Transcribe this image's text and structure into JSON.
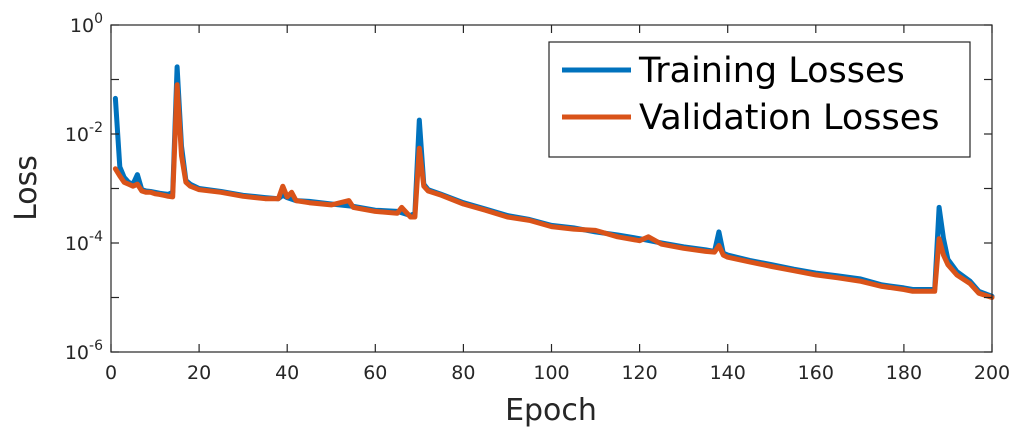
{
  "chart_data": {
    "type": "line",
    "xlabel": "Epoch",
    "ylabel": "Loss",
    "xlim": [
      0,
      200
    ],
    "ylim": [
      1e-06,
      1
    ],
    "y_scale": "log",
    "grid": false,
    "legend_position": "top-right",
    "x_ticks": [
      {
        "value": 0,
        "label": "0"
      },
      {
        "value": 20,
        "label": "20"
      },
      {
        "value": 40,
        "label": "40"
      },
      {
        "value": 60,
        "label": "60"
      },
      {
        "value": 80,
        "label": "80"
      },
      {
        "value": 100,
        "label": "100"
      },
      {
        "value": 120,
        "label": "120"
      },
      {
        "value": 140,
        "label": "140"
      },
      {
        "value": 160,
        "label": "160"
      },
      {
        "value": 180,
        "label": "180"
      },
      {
        "value": 200,
        "label": "200"
      }
    ],
    "y_ticks": [
      {
        "value": 1e-06,
        "base": "10",
        "exp": "-6"
      },
      {
        "value": 0.0001,
        "base": "10",
        "exp": "-4"
      },
      {
        "value": 0.01,
        "base": "10",
        "exp": "-2"
      },
      {
        "value": 1,
        "base": "10",
        "exp": "0"
      }
    ],
    "series": [
      {
        "name": "Training Losses",
        "color": "#0072BD",
        "points": [
          [
            1,
            0.045
          ],
          [
            2,
            0.0025
          ],
          [
            3,
            0.0016
          ],
          [
            4,
            0.0013
          ],
          [
            5,
            0.0012
          ],
          [
            6,
            0.0018
          ],
          [
            7,
            0.00095
          ],
          [
            8,
            0.0009
          ],
          [
            9,
            0.00088
          ],
          [
            10,
            0.00085
          ],
          [
            11,
            0.00082
          ],
          [
            12,
            0.0008
          ],
          [
            13,
            0.00078
          ],
          [
            14,
            0.00085
          ],
          [
            15,
            0.17
          ],
          [
            16,
            0.006
          ],
          [
            17,
            0.0014
          ],
          [
            18,
            0.0012
          ],
          [
            20,
            0.001
          ],
          [
            25,
            0.00088
          ],
          [
            30,
            0.00075
          ],
          [
            35,
            0.00068
          ],
          [
            38,
            0.00065
          ],
          [
            39,
            0.00075
          ],
          [
            40,
            0.00068
          ],
          [
            42,
            0.0006
          ],
          [
            45,
            0.00058
          ],
          [
            50,
            0.00052
          ],
          [
            54,
            0.00048
          ],
          [
            55,
            0.00047
          ],
          [
            60,
            0.0004
          ],
          [
            65,
            0.00038
          ],
          [
            68,
            0.00032
          ],
          [
            69,
            0.00035
          ],
          [
            70,
            0.018
          ],
          [
            71,
            0.0012
          ],
          [
            72,
            0.00095
          ],
          [
            75,
            0.00078
          ],
          [
            80,
            0.00055
          ],
          [
            85,
            0.00042
          ],
          [
            90,
            0.00032
          ],
          [
            95,
            0.00027
          ],
          [
            100,
            0.00021
          ],
          [
            105,
            0.00019
          ],
          [
            110,
            0.00016
          ],
          [
            115,
            0.00014
          ],
          [
            120,
            0.00012
          ],
          [
            125,
            0.0001
          ],
          [
            130,
            8.5e-05
          ],
          [
            135,
            7.5e-05
          ],
          [
            137,
            7e-05
          ],
          [
            138,
            0.00016
          ],
          [
            139,
            6.5e-05
          ],
          [
            140,
            6e-05
          ],
          [
            145,
            4.8e-05
          ],
          [
            150,
            4e-05
          ],
          [
            155,
            3.3e-05
          ],
          [
            160,
            2.8e-05
          ],
          [
            165,
            2.5e-05
          ],
          [
            170,
            2.2e-05
          ],
          [
            175,
            1.7e-05
          ],
          [
            180,
            1.5e-05
          ],
          [
            182,
            1.4e-05
          ],
          [
            185,
            1.4e-05
          ],
          [
            186,
            1.4e-05
          ],
          [
            187,
            1.4e-05
          ],
          [
            188,
            0.00045
          ],
          [
            189,
            0.00012
          ],
          [
            190,
            5e-05
          ],
          [
            192,
            3e-05
          ],
          [
            195,
            2e-05
          ],
          [
            197,
            1.3e-05
          ],
          [
            200,
            1.05e-05
          ]
        ]
      },
      {
        "name": "Validation Losses",
        "color": "#D95319",
        "points": [
          [
            1,
            0.0023
          ],
          [
            2,
            0.0017
          ],
          [
            3,
            0.0013
          ],
          [
            4,
            0.0012
          ],
          [
            5,
            0.0011
          ],
          [
            6,
            0.0012
          ],
          [
            7,
            0.0009
          ],
          [
            8,
            0.00085
          ],
          [
            9,
            0.00085
          ],
          [
            10,
            0.0008
          ],
          [
            11,
            0.00078
          ],
          [
            12,
            0.00075
          ],
          [
            13,
            0.00072
          ],
          [
            14,
            0.0007
          ],
          [
            15,
            0.08
          ],
          [
            16,
            0.004
          ],
          [
            17,
            0.0013
          ],
          [
            18,
            0.0011
          ],
          [
            20,
            0.00095
          ],
          [
            25,
            0.00085
          ],
          [
            30,
            0.00072
          ],
          [
            35,
            0.00065
          ],
          [
            38,
            0.00065
          ],
          [
            39,
            0.0011
          ],
          [
            40,
            0.0007
          ],
          [
            41,
            0.00085
          ],
          [
            42,
            0.0006
          ],
          [
            45,
            0.00055
          ],
          [
            50,
            0.0005
          ],
          [
            54,
            0.0006
          ],
          [
            55,
            0.00045
          ],
          [
            60,
            0.00038
          ],
          [
            65,
            0.00035
          ],
          [
            66,
            0.00045
          ],
          [
            68,
            0.0003
          ],
          [
            69,
            0.0003
          ],
          [
            70,
            0.0055
          ],
          [
            71,
            0.0011
          ],
          [
            72,
            0.0009
          ],
          [
            75,
            0.00075
          ],
          [
            80,
            0.00052
          ],
          [
            85,
            0.0004
          ],
          [
            90,
            0.0003
          ],
          [
            95,
            0.00026
          ],
          [
            100,
            0.0002
          ],
          [
            105,
            0.00018
          ],
          [
            110,
            0.00017
          ],
          [
            115,
            0.00013
          ],
          [
            120,
            0.00011
          ],
          [
            122,
            0.00013
          ],
          [
            125,
            9.5e-05
          ],
          [
            130,
            8e-05
          ],
          [
            135,
            7e-05
          ],
          [
            137,
            6.8e-05
          ],
          [
            138,
            9e-05
          ],
          [
            139,
            6e-05
          ],
          [
            140,
            5.5e-05
          ],
          [
            145,
            4.5e-05
          ],
          [
            150,
            3.7e-05
          ],
          [
            155,
            3.1e-05
          ],
          [
            160,
            2.6e-05
          ],
          [
            165,
            2.3e-05
          ],
          [
            170,
            2e-05
          ],
          [
            175,
            1.6e-05
          ],
          [
            180,
            1.4e-05
          ],
          [
            182,
            1.3e-05
          ],
          [
            185,
            1.3e-05
          ],
          [
            187,
            1.3e-05
          ],
          [
            188,
            0.00012
          ],
          [
            189,
            6e-05
          ],
          [
            190,
            4e-05
          ],
          [
            192,
            2.6e-05
          ],
          [
            195,
            1.8e-05
          ],
          [
            197,
            1.2e-05
          ],
          [
            200,
            1e-05
          ]
        ]
      }
    ]
  }
}
